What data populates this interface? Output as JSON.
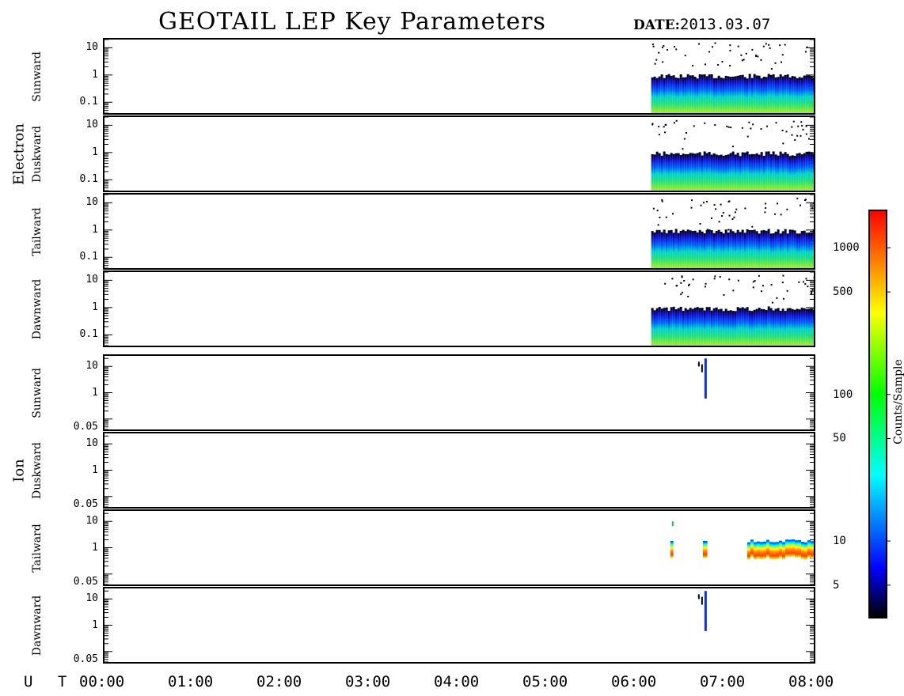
{
  "title": "GEOTAIL LEP Key Parameters",
  "date_label": "DATE:",
  "date_value": "2013.03.07",
  "ut_label": "U T",
  "groups": [
    "Electron",
    "Ion"
  ],
  "colorbar": {
    "label": "Counts/Sample",
    "ticks": [
      "1000",
      "500",
      "100",
      "50",
      "10",
      "5"
    ],
    "tick_values": [
      1000,
      500,
      100,
      50,
      10,
      5
    ],
    "range": [
      3,
      1800
    ],
    "scale": "log",
    "colors": [
      "#000000",
      "#0000ff",
      "#00ffff",
      "#00ff00",
      "#ffff00",
      "#ff0000"
    ]
  },
  "chart_data": {
    "type": "heatmap",
    "xlabel": "U T",
    "x_ticks": [
      "00:00",
      "01:00",
      "02:00",
      "03:00",
      "04:00",
      "05:00",
      "06:00",
      "07:00",
      "08:00"
    ],
    "xlim": [
      "00:00",
      "08:00"
    ],
    "yscale": "log",
    "panels": [
      {
        "group": "Electron",
        "label": "Sunward",
        "yticks": [
          "10",
          "1",
          "0.1"
        ],
        "ylim": [
          0.04,
          20
        ],
        "data_start": "06:10",
        "data_end": "08:00"
      },
      {
        "group": "Electron",
        "label": "Duskward",
        "yticks": [
          "10",
          "1",
          "0.1"
        ],
        "ylim": [
          0.04,
          20
        ],
        "data_start": "06:10",
        "data_end": "08:00"
      },
      {
        "group": "Electron",
        "label": "Tailward",
        "yticks": [
          "10",
          "1",
          "0.1"
        ],
        "ylim": [
          0.04,
          20
        ],
        "data_start": "06:10",
        "data_end": "08:00"
      },
      {
        "group": "Electron",
        "label": "Dawnward",
        "yticks": [
          "10",
          "1",
          "0.1"
        ],
        "ylim": [
          0.04,
          20
        ],
        "data_start": "06:10",
        "data_end": "08:00"
      },
      {
        "group": "Ion",
        "label": "Sunward",
        "yticks": [
          "10",
          "1",
          "0.05"
        ],
        "ylim": [
          0.04,
          25
        ],
        "data_start": "06:45",
        "data_end": "06:48"
      },
      {
        "group": "Ion",
        "label": "Duskward",
        "yticks": [
          "10",
          "1",
          "0.05"
        ],
        "ylim": [
          0.04,
          25
        ]
      },
      {
        "group": "Ion",
        "label": "Tailward",
        "yticks": [
          "10",
          "1",
          "0.05"
        ],
        "ylim": [
          0.04,
          25
        ],
        "data_intervals": [
          [
            "06:23",
            "06:25"
          ],
          [
            "06:45",
            "06:48"
          ],
          [
            "07:15",
            "08:00"
          ]
        ]
      },
      {
        "group": "Ion",
        "label": "Dawnward",
        "yticks": [
          "10",
          "1",
          "0.05"
        ],
        "ylim": [
          0.04,
          25
        ],
        "data_start": "06:45",
        "data_end": "06:48"
      }
    ]
  }
}
